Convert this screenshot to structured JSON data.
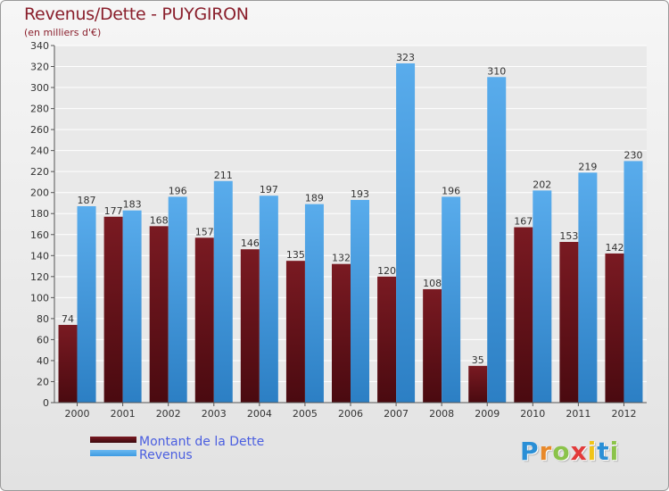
{
  "title": "Revenus/Dette - PUYGIRON",
  "subtitle": "(en milliers d'€)",
  "logo": {
    "letters": [
      "P",
      "r",
      "o",
      "x",
      "i",
      "t",
      "i"
    ],
    "colors": [
      "#2a8fd6",
      "#e8892a",
      "#8bc34a",
      "#e23b3b",
      "#f0c419",
      "#2a8fd6",
      "#8bc34a"
    ]
  },
  "colors": {
    "dette": "#7a1a22",
    "revenus": "#3d9be2"
  },
  "chart_data": {
    "type": "bar",
    "title": "Revenus/Dette - PUYGIRON",
    "ylabel": "(en milliers d'€)",
    "xlabel": "",
    "categories": [
      "2000",
      "2001",
      "2002",
      "2003",
      "2004",
      "2005",
      "2006",
      "2007",
      "2008",
      "2009",
      "2010",
      "2011",
      "2012"
    ],
    "series": [
      {
        "name": "Montant de la Dette",
        "values": [
          74,
          177,
          168,
          157,
          146,
          135,
          132,
          120,
          108,
          35,
          167,
          153,
          142
        ]
      },
      {
        "name": "Revenus",
        "values": [
          187,
          183,
          196,
          211,
          197,
          189,
          193,
          323,
          196,
          310,
          202,
          219,
          230
        ]
      }
    ],
    "ylim": [
      0,
      340
    ],
    "yticks": [
      0,
      20,
      40,
      60,
      80,
      100,
      120,
      140,
      160,
      180,
      200,
      220,
      240,
      260,
      280,
      300,
      320,
      340
    ],
    "grid": true,
    "legend": "bottom-left"
  }
}
